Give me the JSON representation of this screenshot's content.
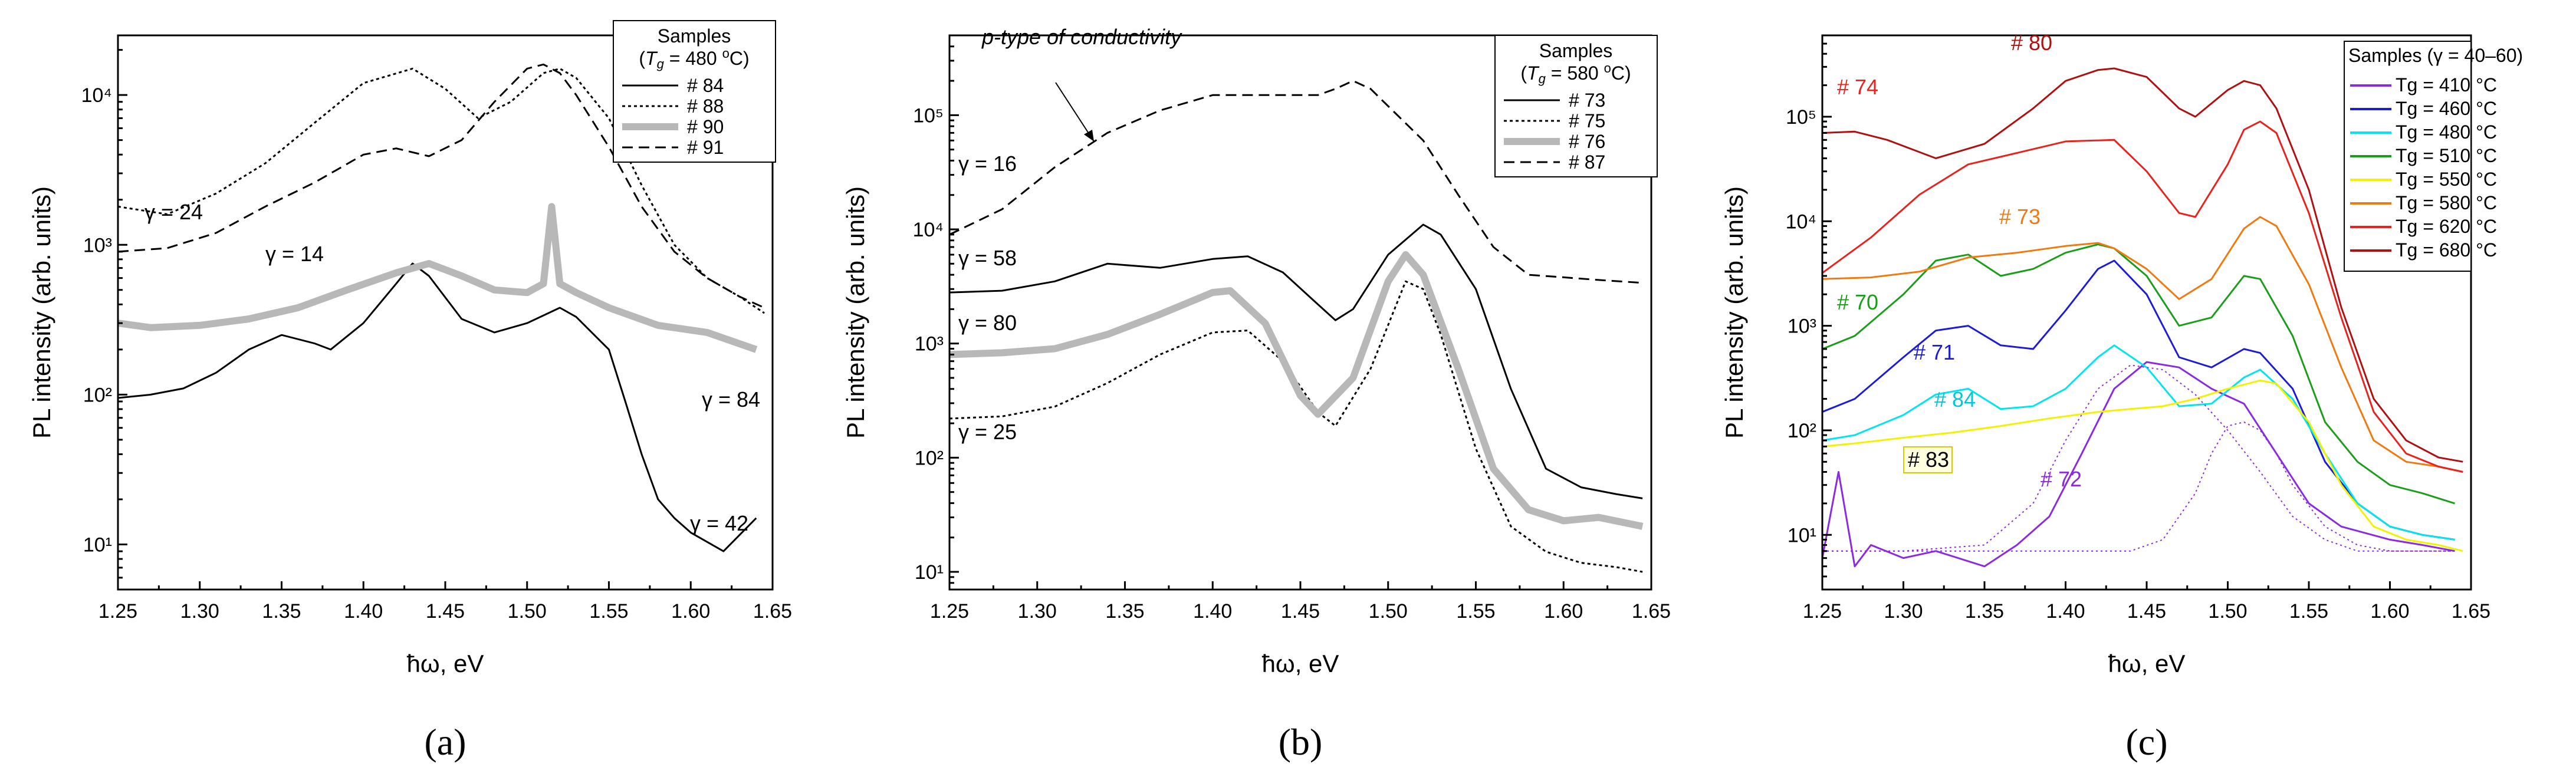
{
  "figure": {
    "panel_labels": [
      "(a)",
      "(b)",
      "(c)"
    ]
  },
  "chart_data": [
    {
      "type": "line",
      "title": "",
      "xlabel": "ħω, eV",
      "ylabel": "PL intensity (arb. units)",
      "xlim": [
        1.25,
        1.65
      ],
      "ylim": [
        5,
        25000
      ],
      "yscale": "log",
      "xticks": [
        "1.25",
        "1.30",
        "1.35",
        "1.40",
        "1.45",
        "1.50",
        "1.55",
        "1.60",
        "1.65"
      ],
      "yticks": [
        {
          "v": 10,
          "label": "10¹"
        },
        {
          "v": 100,
          "label": "10²"
        },
        {
          "v": 1000,
          "label": "10³"
        },
        {
          "v": 10000,
          "label": "10⁴"
        }
      ],
      "legend": {
        "title": "Samples",
        "subtitle": "(Tg = 480 °C)",
        "position": "top-right",
        "entries": [
          "# 84",
          "# 88",
          "# 90",
          "# 91"
        ]
      },
      "series": [
        {
          "name": "# 84",
          "color": "#000000",
          "style": "solid",
          "x": [
            1.25,
            1.27,
            1.29,
            1.31,
            1.33,
            1.35,
            1.37,
            1.38,
            1.4,
            1.42,
            1.43,
            1.44,
            1.46,
            1.48,
            1.5,
            1.52,
            1.53,
            1.55,
            1.56,
            1.57,
            1.58,
            1.59,
            1.6,
            1.62,
            1.64
          ],
          "y": [
            95,
            100,
            110,
            140,
            200,
            250,
            220,
            200,
            300,
            550,
            750,
            620,
            320,
            260,
            300,
            380,
            330,
            200,
            90,
            40,
            20,
            15,
            12,
            9,
            15
          ]
        },
        {
          "name": "# 88",
          "color": "#000000",
          "style": "dotted",
          "x": [
            1.25,
            1.28,
            1.31,
            1.34,
            1.37,
            1.4,
            1.43,
            1.45,
            1.47,
            1.49,
            1.51,
            1.52,
            1.53,
            1.55,
            1.57,
            1.59,
            1.61,
            1.63,
            1.645
          ],
          "y": [
            1800,
            1600,
            2200,
            3500,
            6500,
            12000,
            15000,
            11000,
            7000,
            9000,
            14000,
            15000,
            13000,
            7000,
            2500,
            1000,
            600,
            450,
            350
          ]
        },
        {
          "name": "# 90",
          "color": "#b8b8b8",
          "style": "thick",
          "x": [
            1.25,
            1.27,
            1.3,
            1.33,
            1.36,
            1.39,
            1.42,
            1.44,
            1.46,
            1.48,
            1.5,
            1.51,
            1.515,
            1.52,
            1.53,
            1.55,
            1.58,
            1.61,
            1.64
          ],
          "y": [
            300,
            280,
            290,
            320,
            380,
            500,
            650,
            750,
            620,
            500,
            480,
            550,
            1800,
            550,
            480,
            380,
            290,
            260,
            200
          ]
        },
        {
          "name": "# 91",
          "color": "#000000",
          "style": "dashed",
          "x": [
            1.25,
            1.28,
            1.31,
            1.34,
            1.37,
            1.4,
            1.42,
            1.44,
            1.46,
            1.48,
            1.5,
            1.51,
            1.52,
            1.53,
            1.55,
            1.57,
            1.59,
            1.61,
            1.63,
            1.645
          ],
          "y": [
            900,
            950,
            1200,
            1800,
            2600,
            4000,
            4400,
            3900,
            5000,
            9000,
            15000,
            16000,
            14000,
            10000,
            4500,
            1800,
            900,
            600,
            450,
            380
          ]
        }
      ],
      "annotations": [
        "γ = 24",
        "γ = 14",
        "γ = 84",
        "γ = 42"
      ]
    },
    {
      "type": "line",
      "title": "",
      "xlabel": "ħω, eV",
      "ylabel": "PL intensity (arb. units)",
      "xlim": [
        1.25,
        1.65
      ],
      "ylim": [
        7,
        500000
      ],
      "yscale": "log",
      "xticks": [
        "1.25",
        "1.30",
        "1.35",
        "1.40",
        "1.45",
        "1.50",
        "1.55",
        "1.60",
        "1.65"
      ],
      "yticks": [
        {
          "v": 10,
          "label": "10¹"
        },
        {
          "v": 100,
          "label": "10²"
        },
        {
          "v": 1000,
          "label": "10³"
        },
        {
          "v": 10000,
          "label": "10⁴"
        },
        {
          "v": 100000,
          "label": "10⁵"
        }
      ],
      "legend": {
        "title": "Samples",
        "subtitle": "(Tg = 580 °C)",
        "position": "top-right",
        "entries": [
          "# 73",
          "# 75",
          "# 76",
          "# 87"
        ]
      },
      "series": [
        {
          "name": "# 73",
          "color": "#000000",
          "style": "solid",
          "x": [
            1.25,
            1.28,
            1.31,
            1.34,
            1.37,
            1.4,
            1.42,
            1.44,
            1.46,
            1.47,
            1.48,
            1.5,
            1.52,
            1.53,
            1.55,
            1.57,
            1.59,
            1.61,
            1.63,
            1.645
          ],
          "y": [
            2800,
            2900,
            3500,
            5000,
            4600,
            5500,
            5800,
            4200,
            2200,
            1600,
            2000,
            6000,
            11000,
            9000,
            3000,
            400,
            80,
            55,
            48,
            44
          ]
        },
        {
          "name": "# 75",
          "color": "#000000",
          "style": "dotted",
          "x": [
            1.25,
            1.28,
            1.31,
            1.34,
            1.37,
            1.4,
            1.42,
            1.44,
            1.46,
            1.47,
            1.49,
            1.51,
            1.52,
            1.53,
            1.55,
            1.57,
            1.59,
            1.61,
            1.63,
            1.645
          ],
          "y": [
            220,
            230,
            280,
            450,
            800,
            1250,
            1300,
            700,
            250,
            190,
            600,
            3500,
            3000,
            1200,
            120,
            25,
            15,
            12,
            11,
            10
          ]
        },
        {
          "name": "# 76",
          "color": "#b8b8b8",
          "style": "thick",
          "x": [
            1.25,
            1.28,
            1.31,
            1.34,
            1.37,
            1.4,
            1.41,
            1.43,
            1.45,
            1.46,
            1.48,
            1.5,
            1.51,
            1.52,
            1.54,
            1.56,
            1.58,
            1.6,
            1.62,
            1.645
          ],
          "y": [
            800,
            830,
            900,
            1200,
            1800,
            2800,
            2900,
            1500,
            350,
            240,
            500,
            3500,
            6000,
            4000,
            600,
            80,
            35,
            28,
            30,
            25
          ]
        },
        {
          "name": "# 87",
          "color": "#000000",
          "style": "dashed",
          "x": [
            1.25,
            1.28,
            1.31,
            1.34,
            1.37,
            1.4,
            1.43,
            1.46,
            1.47,
            1.48,
            1.49,
            1.5,
            1.52,
            1.54,
            1.56,
            1.58,
            1.6,
            1.62,
            1.645
          ],
          "y": [
            9000,
            15000,
            35000,
            70000,
            110000,
            150000,
            150000,
            150000,
            170000,
            200000,
            170000,
            120000,
            60000,
            20000,
            7000,
            4000,
            3800,
            3600,
            3400
          ]
        }
      ],
      "annotations": [
        "p-type of conductivity",
        "γ = 16",
        "γ = 58",
        "γ = 80",
        "γ = 25"
      ]
    },
    {
      "type": "line",
      "title": "",
      "xlabel": "ħω, eV",
      "ylabel": "PL intensity (arb. units)",
      "xlim": [
        1.25,
        1.65
      ],
      "ylim": [
        3,
        600000
      ],
      "yscale": "log",
      "xticks": [
        "1.25",
        "1.30",
        "1.35",
        "1.40",
        "1.45",
        "1.50",
        "1.55",
        "1.60",
        "1.65"
      ],
      "yticks": [
        {
          "v": 10,
          "label": "10¹"
        },
        {
          "v": 100,
          "label": "10²"
        },
        {
          "v": 1000,
          "label": "10³"
        },
        {
          "v": 10000,
          "label": "10⁴"
        },
        {
          "v": 100000,
          "label": "10⁵"
        }
      ],
      "legend": {
        "title": "Samples (γ = 40–60)",
        "position": "top-right",
        "entries": [
          "Tg = 410 °C",
          "Tg = 460 °C",
          "Tg = 480 °C",
          "Tg = 510 °C",
          "Tg = 550 °C",
          "Tg = 580 °C",
          "Tg = 620 °C",
          "Tg = 680 °C"
        ]
      },
      "series": [
        {
          "name": "Tg = 410 °C",
          "color": "#8a2be2",
          "style": "solid",
          "x": [
            1.25,
            1.26,
            1.27,
            1.28,
            1.3,
            1.32,
            1.35,
            1.37,
            1.39,
            1.41,
            1.43,
            1.45,
            1.47,
            1.49,
            1.51,
            1.53,
            1.55,
            1.57,
            1.6,
            1.62,
            1.64
          ],
          "y": [
            6,
            40,
            5,
            8,
            6,
            7,
            5,
            8,
            15,
            60,
            250,
            450,
            400,
            250,
            180,
            60,
            20,
            12,
            9,
            8,
            7
          ]
        },
        {
          "name": "Tg = 460 °C",
          "color": "#1c1cd8",
          "style": "solid",
          "x": [
            1.25,
            1.27,
            1.3,
            1.32,
            1.34,
            1.36,
            1.38,
            1.4,
            1.42,
            1.43,
            1.45,
            1.47,
            1.49,
            1.51,
            1.52,
            1.54,
            1.56,
            1.58,
            1.6,
            1.62,
            1.64
          ],
          "y": [
            150,
            200,
            500,
            900,
            1000,
            650,
            600,
            1400,
            3500,
            4200,
            2000,
            500,
            400,
            600,
            550,
            250,
            50,
            20,
            12,
            10,
            9
          ]
        },
        {
          "name": "Tg = 480 °C",
          "color": "#00e5ee",
          "style": "solid",
          "x": [
            1.25,
            1.27,
            1.3,
            1.32,
            1.34,
            1.36,
            1.38,
            1.4,
            1.42,
            1.43,
            1.45,
            1.47,
            1.49,
            1.51,
            1.52,
            1.54,
            1.56,
            1.58,
            1.6,
            1.62,
            1.64
          ],
          "y": [
            80,
            90,
            140,
            220,
            250,
            160,
            170,
            250,
            500,
            650,
            400,
            170,
            180,
            320,
            380,
            200,
            60,
            20,
            12,
            10,
            9
          ]
        },
        {
          "name": "Tg = 510 °C",
          "color": "#1a9e1a",
          "style": "solid",
          "x": [
            1.25,
            1.27,
            1.3,
            1.32,
            1.34,
            1.36,
            1.38,
            1.4,
            1.42,
            1.43,
            1.45,
            1.47,
            1.49,
            1.51,
            1.52,
            1.54,
            1.56,
            1.58,
            1.6,
            1.62,
            1.64
          ],
          "y": [
            600,
            800,
            2000,
            4200,
            4800,
            3000,
            3500,
            5000,
            6000,
            5500,
            3000,
            1000,
            1200,
            3000,
            2800,
            800,
            120,
            50,
            30,
            25,
            20
          ]
        },
        {
          "name": "Tg = 550 °C",
          "color": "#f2f200",
          "style": "solid",
          "x": [
            1.25,
            1.27,
            1.3,
            1.33,
            1.36,
            1.39,
            1.42,
            1.44,
            1.46,
            1.48,
            1.5,
            1.52,
            1.53,
            1.55,
            1.57,
            1.59,
            1.61,
            1.63,
            1.645
          ],
          "y": [
            70,
            75,
            85,
            95,
            110,
            130,
            150,
            160,
            170,
            200,
            250,
            300,
            280,
            120,
            30,
            12,
            9,
            8,
            7
          ]
        },
        {
          "name": "Tg = 580 °C",
          "color": "#f07a10",
          "style": "solid",
          "x": [
            1.25,
            1.28,
            1.31,
            1.34,
            1.37,
            1.4,
            1.42,
            1.43,
            1.45,
            1.47,
            1.49,
            1.51,
            1.52,
            1.53,
            1.55,
            1.57,
            1.59,
            1.61,
            1.63,
            1.645
          ],
          "y": [
            2800,
            2900,
            3300,
            4500,
            5000,
            5800,
            6200,
            5500,
            3500,
            1800,
            2800,
            8500,
            11000,
            9000,
            2500,
            400,
            80,
            50,
            45,
            40
          ]
        },
        {
          "name": "Tg = 620 °C",
          "color": "#e8231e",
          "style": "solid",
          "x": [
            1.25,
            1.28,
            1.31,
            1.34,
            1.37,
            1.4,
            1.43,
            1.45,
            1.47,
            1.48,
            1.5,
            1.51,
            1.52,
            1.53,
            1.55,
            1.57,
            1.59,
            1.61,
            1.63,
            1.645
          ],
          "y": [
            3200,
            7000,
            18000,
            35000,
            45000,
            58000,
            60000,
            30000,
            12000,
            11000,
            35000,
            75000,
            90000,
            70000,
            12000,
            1200,
            150,
            60,
            45,
            40
          ]
        },
        {
          "name": "Tg = 680 °C",
          "color": "#b01010",
          "style": "solid",
          "x": [
            1.25,
            1.27,
            1.29,
            1.32,
            1.35,
            1.38,
            1.4,
            1.42,
            1.43,
            1.45,
            1.47,
            1.48,
            1.5,
            1.51,
            1.52,
            1.53,
            1.55,
            1.57,
            1.59,
            1.61,
            1.63,
            1.645
          ],
          "y": [
            70000,
            72000,
            60000,
            40000,
            55000,
            120000,
            220000,
            280000,
            290000,
            240000,
            120000,
            100000,
            180000,
            220000,
            200000,
            120000,
            20000,
            1500,
            200,
            80,
            55,
            50
          ]
        },
        {
          "name": "fit-1",
          "color": "#8a2be2",
          "style": "fine-dotted",
          "legend": false,
          "x": [
            1.25,
            1.3,
            1.35,
            1.38,
            1.4,
            1.42,
            1.44,
            1.46,
            1.48,
            1.5,
            1.52,
            1.54,
            1.56,
            1.58,
            1.6,
            1.62,
            1.64
          ],
          "y": [
            7,
            7,
            8,
            20,
            80,
            250,
            420,
            380,
            220,
            100,
            40,
            15,
            9,
            7,
            7,
            7,
            7
          ]
        },
        {
          "name": "fit-2",
          "color": "#8a2be2",
          "style": "fine-dotted",
          "legend": false,
          "x": [
            1.25,
            1.4,
            1.44,
            1.46,
            1.48,
            1.49,
            1.5,
            1.51,
            1.52,
            1.53,
            1.54,
            1.56,
            1.58,
            1.6,
            1.62,
            1.64
          ],
          "y": [
            7,
            7,
            7,
            9,
            25,
            60,
            110,
            120,
            100,
            60,
            30,
            12,
            8,
            7,
            7,
            7
          ]
        }
      ],
      "annotations": [
        "# 80",
        "# 74",
        "# 73",
        "# 70",
        "# 71",
        "# 84",
        "# 83",
        "# 72"
      ]
    }
  ]
}
